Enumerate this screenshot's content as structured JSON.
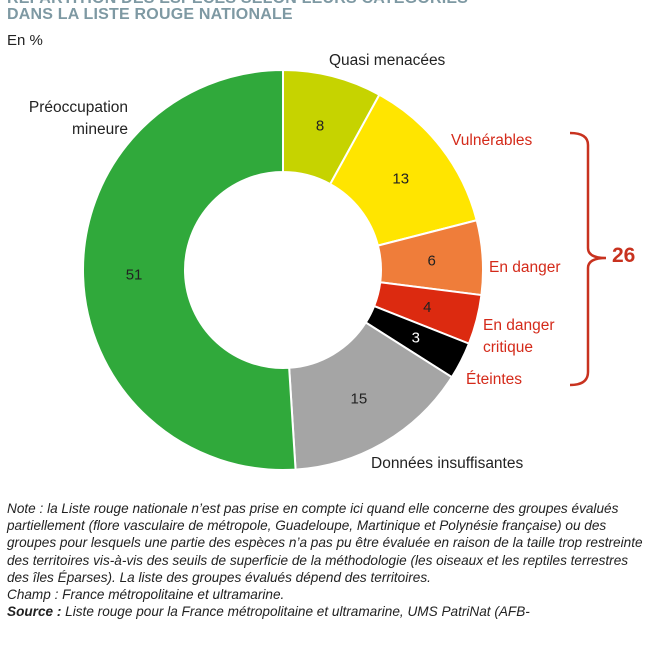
{
  "chart_data": {
    "type": "pie",
    "variant": "donut",
    "title_line1": "RÉPARTITION DES ESPÈCES SELON LEURS CATÉGORIES",
    "title_line2": "DANS LA LISTE ROUGE NATIONALE",
    "unit": "En %",
    "start": "top",
    "direction": "clockwise",
    "slices": [
      {
        "label": "Quasi menacées",
        "value": 8,
        "color": "#c6d300"
      },
      {
        "label": "Vulnérables",
        "value": 13,
        "color": "#ffe500"
      },
      {
        "label": "En danger",
        "value": 6,
        "color": "#ef7d3a"
      },
      {
        "label": "En danger critique",
        "value": 4,
        "color": "#dc2a10"
      },
      {
        "label": "Éteintes",
        "value": 3,
        "color": "#000000"
      },
      {
        "label": "Données insuffisantes",
        "value": 15,
        "color": "#a5a5a5"
      },
      {
        "label": "Préoccupation mineure",
        "value": 51,
        "color": "#30a93b"
      }
    ],
    "bracket_total": "26",
    "bracket_color": "#c8321f"
  },
  "labels": {
    "quasi": "Quasi menacées",
    "vuln": "Vulnérables",
    "danger": "En danger",
    "critique1": "En danger",
    "critique2": "critique",
    "eteintes": "Éteintes",
    "donnees": "Données insuffisantes",
    "preoc1": "Préoccupation",
    "preoc2": "mineure"
  },
  "notes": {
    "note_label": "Note :",
    "note": "la Liste rouge nationale n’est pas prise en compte ici quand elle concerne des groupes évalués partiellement (flore vasculaire de métropole, Guadeloupe, Martinique et Polynésie française) ou des groupes pour lesquels une partie des espèces n’a pas pu être évaluée en raison de la taille trop restreinte des territoires vis-à-vis des seuils de superficie de la méthodologie (les oiseaux et les reptiles terrestres des îles Éparses). La liste des groupes évalués dépend des territoires.",
    "champ": "Champ : France métropolitaine et ultramarine.",
    "source_label": "Source :",
    "source": "Liste rouge pour la France métropolitaine et ultramarine, UMS PatriNat (AFB-"
  }
}
